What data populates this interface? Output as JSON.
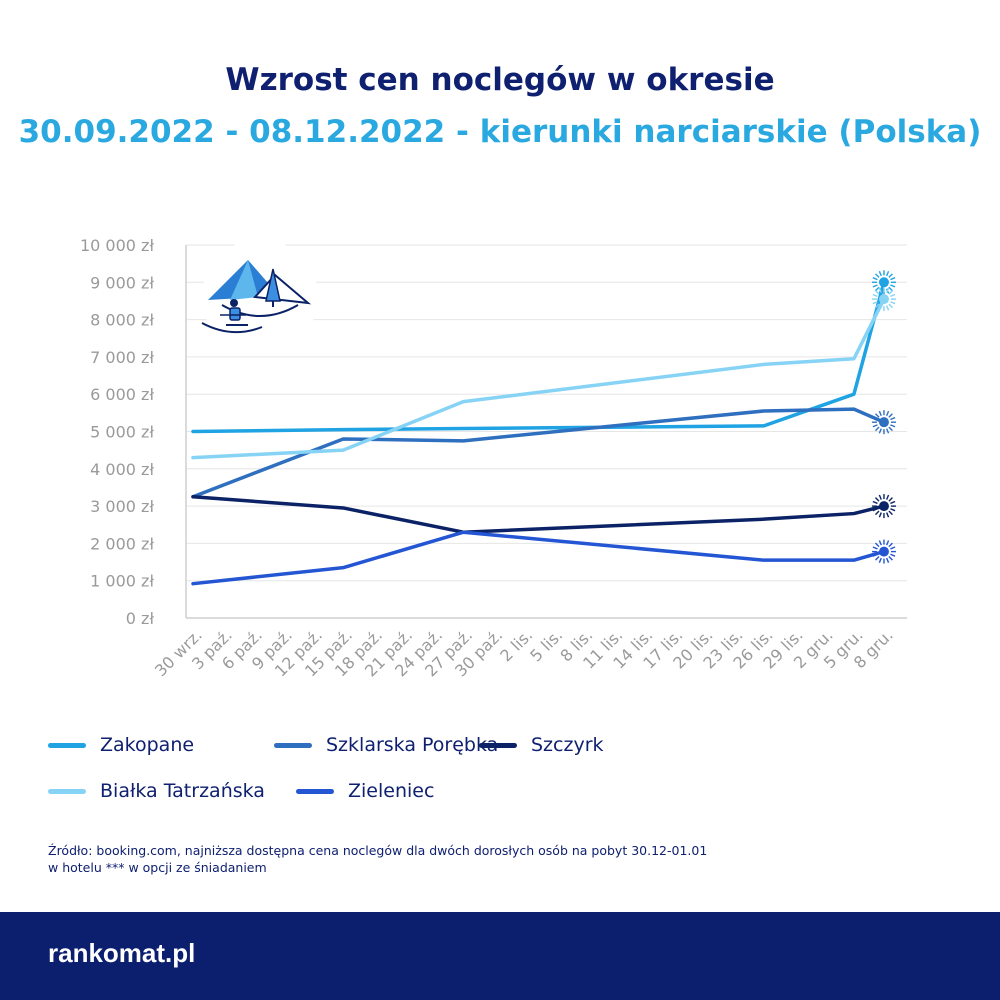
{
  "title": "Wzrost cen noclegów w okresie",
  "subtitle": "30.09.2022 - 08.12.2022 - kierunki narciarskie (Polska)",
  "source_line1": "Źródło: booking.com, najniższa dostępna cena noclegów dla dwóch dorosłych osób na pobyt 30.12-01.01",
  "source_line2": "w hotelu *** w opcji ze śniadaniem",
  "logo_text": "rankomat.pl",
  "colors": {
    "title": "#0f2070",
    "subtitle": "#2aa8e0",
    "footer": "#0b1f6e"
  },
  "chart_data": {
    "type": "line",
    "ylim": [
      0,
      10000
    ],
    "yticks": [
      0,
      1000,
      2000,
      3000,
      4000,
      5000,
      6000,
      7000,
      8000,
      9000,
      10000
    ],
    "ytick_labels": [
      "0 zł",
      "1 000 zł",
      "2 000 zł",
      "3 000 zł",
      "4 000 zł",
      "5 000 zł",
      "6 000 zł",
      "7 000 zł",
      "8 000 zł",
      "9 000 zł",
      "10 000 zł"
    ],
    "categories": [
      "30 wrz.",
      "3 paź.",
      "6 paź.",
      "9 paź.",
      "12 paź.",
      "15 paź.",
      "18 paź.",
      "21 paź.",
      "24 paź.",
      "27 paź.",
      "30 paź.",
      "2 lis.",
      "5 lis.",
      "8 lis.",
      "11 lis.",
      "14 lis.",
      "17 lis.",
      "20 lis.",
      "23 lis.",
      "26 lis.",
      "29 lis.",
      "2 gru.",
      "5 gru.",
      "8 gru."
    ],
    "grid": true,
    "legend_position": "bottom",
    "series": [
      {
        "name": "Zakopane",
        "color": "#1fa3e3",
        "points": [
          [
            0,
            5000
          ],
          [
            5,
            5050
          ],
          [
            19,
            5150
          ],
          [
            22,
            6000
          ],
          [
            23,
            9000
          ]
        ]
      },
      {
        "name": "Szklarska Porębka",
        "color": "#2f6fbf",
        "points": [
          [
            0,
            3250
          ],
          [
            5,
            4800
          ],
          [
            9,
            4750
          ],
          [
            19,
            5550
          ],
          [
            22,
            5600
          ],
          [
            23,
            5250
          ]
        ]
      },
      {
        "name": "Szczyrk",
        "color": "#0b2266",
        "points": [
          [
            0,
            3250
          ],
          [
            5,
            2950
          ],
          [
            9,
            2300
          ],
          [
            19,
            2650
          ],
          [
            22,
            2800
          ],
          [
            23,
            3000
          ]
        ]
      },
      {
        "name": "Białka Tatrzańska",
        "color": "#86d3f5",
        "points": [
          [
            0,
            4300
          ],
          [
            5,
            4500
          ],
          [
            9,
            5800
          ],
          [
            19,
            6800
          ],
          [
            22,
            6950
          ],
          [
            23,
            8550
          ]
        ]
      },
      {
        "name": "Zieleniec",
        "color": "#2456d4",
        "points": [
          [
            0,
            920
          ],
          [
            5,
            1350
          ],
          [
            9,
            2300
          ],
          [
            19,
            1550
          ],
          [
            22,
            1550
          ],
          [
            23,
            1780
          ]
        ]
      }
    ]
  }
}
